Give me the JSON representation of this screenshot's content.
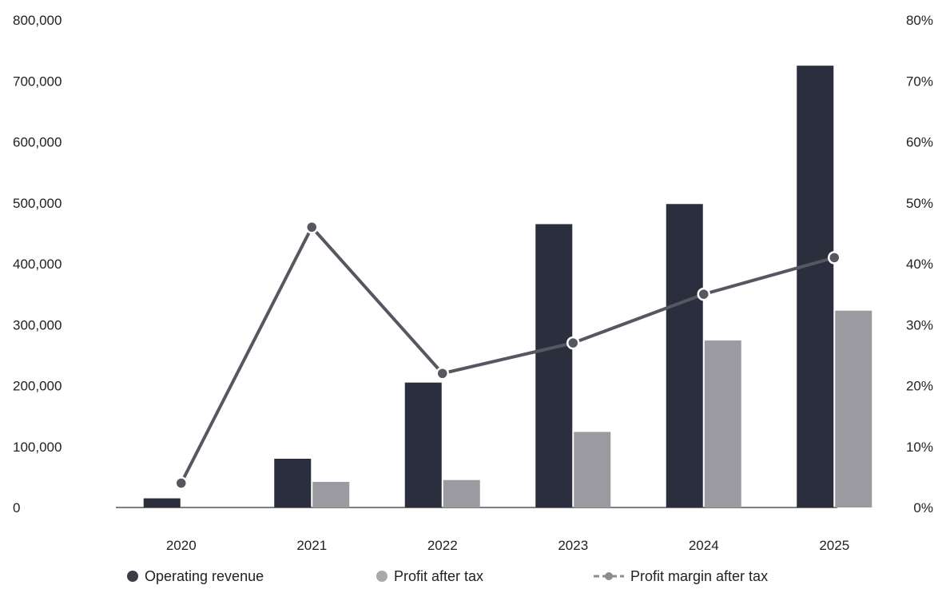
{
  "chart_data": {
    "type": "bar",
    "categories": [
      "2020",
      "2021",
      "2022",
      "2023",
      "2024",
      "2025"
    ],
    "series": [
      {
        "name": "Operating revenue",
        "kind": "bar",
        "axis": "left",
        "color": "#2b2f3d",
        "values": [
          15000,
          80000,
          205000,
          465000,
          498000,
          725000
        ]
      },
      {
        "name": "Profit after tax",
        "kind": "bar",
        "axis": "left",
        "color": "#9a9aa0",
        "values": [
          0,
          42000,
          45000,
          124000,
          274000,
          323000
        ]
      },
      {
        "name": "Profit margin after tax",
        "kind": "line",
        "axis": "right",
        "color": "#555860",
        "values": [
          4,
          46,
          22,
          27,
          35,
          41
        ]
      }
    ],
    "y_left": {
      "ylim": [
        0,
        800000
      ],
      "ticks": [
        "0",
        "100,000",
        "200,000",
        "300,000",
        "400,000",
        "500,000",
        "600,000",
        "700,000",
        "800,000"
      ]
    },
    "y_right": {
      "ylim": [
        0,
        80
      ],
      "ticks": [
        "0%",
        "10%",
        "20%",
        "30%",
        "40%",
        "50%",
        "60%",
        "70%",
        "80%"
      ]
    },
    "title": "",
    "xlabel": "",
    "ylabel": "",
    "grid": false,
    "legend_position": "bottom"
  },
  "legend": {
    "items": [
      {
        "label": "Operating revenue",
        "marker": "dot",
        "color": "#3a3d48"
      },
      {
        "label": "Profit after tax",
        "marker": "dot",
        "color": "#a8a8ae"
      },
      {
        "label": "Profit margin after tax",
        "marker": "line-dot",
        "color": "#8a8c92"
      }
    ]
  }
}
